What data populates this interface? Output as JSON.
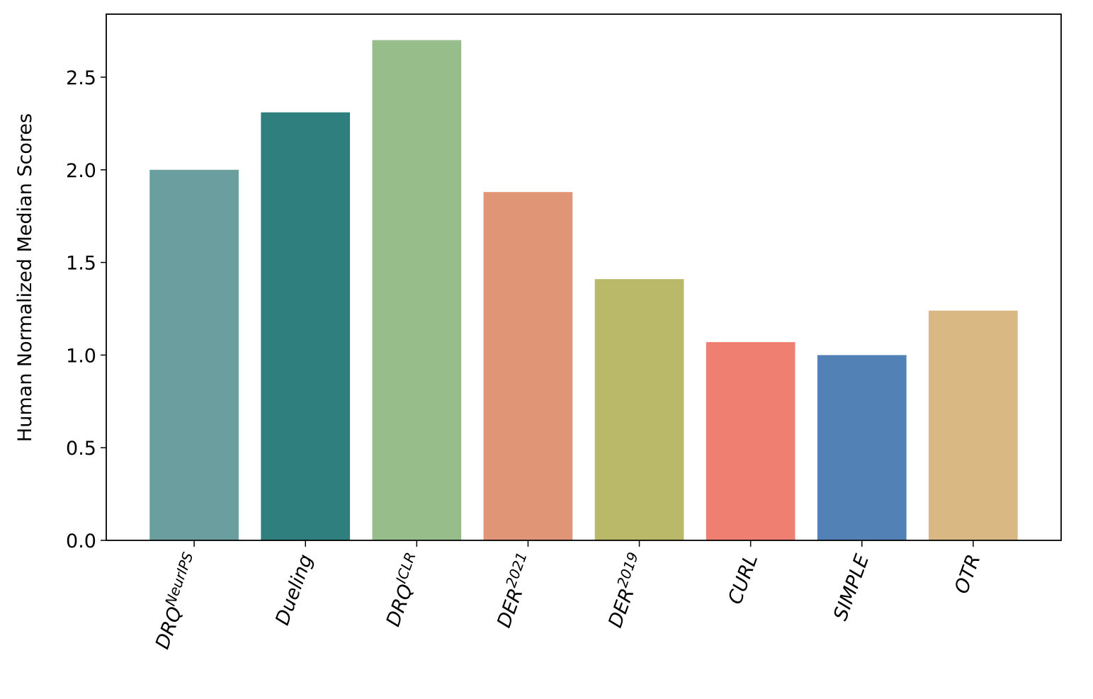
{
  "chart_data": {
    "type": "bar",
    "y_label": "Human Normalized Median Scores",
    "categories": [
      "DRQ",
      "Dueling",
      "DRQ",
      "DER",
      "DER",
      "CURL",
      "SIMPLE",
      "OTR"
    ],
    "category_superscripts": [
      "NeurIPS",
      null,
      "ICLR",
      "2021",
      "2019",
      null,
      null,
      null
    ],
    "values": [
      2.0,
      2.31,
      2.7,
      1.88,
      1.41,
      1.07,
      1.0,
      1.24
    ],
    "colors": [
      "#6b9e9e",
      "#2f7f7e",
      "#97bd8b",
      "#e19577",
      "#bab869",
      "#ee7f71",
      "#5281b5",
      "#d9b883"
    ],
    "ylim": [
      0,
      2.84
    ],
    "yticks": [
      {
        "value": 0,
        "label": "0.0"
      },
      0.5,
      {
        "value": 1,
        "label": "1.0"
      },
      1.5,
      {
        "value": 2,
        "label": "2.0"
      },
      2.5
    ],
    "grid": false
  }
}
